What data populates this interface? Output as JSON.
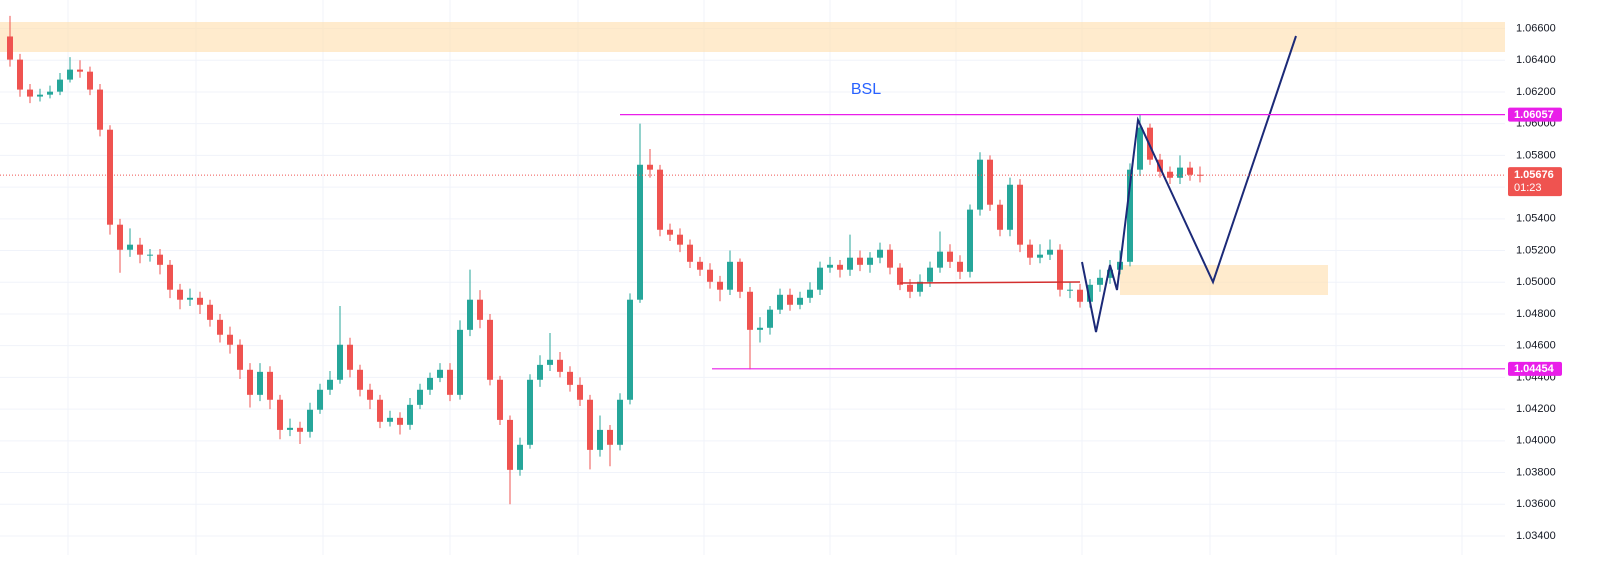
{
  "chart_data": {
    "type": "candlestick",
    "annotation": "BSL",
    "up_color": "#26a69a",
    "down_color": "#ef5350",
    "open": [
      1.0655,
      1.06404,
      1.06215,
      1.06171,
      1.06183,
      1.06202,
      1.06278,
      1.06341,
      1.06328,
      1.06215,
      1.05962,
      1.05363,
      1.05205,
      1.05237,
      1.05174,
      1.05174,
      1.0511,
      1.04953,
      1.0489,
      1.04902,
      1.04858,
      1.04763,
      1.04669,
      1.04606,
      1.04448,
      1.0429,
      1.04435,
      1.04259,
      1.04069,
      1.04082,
      1.04057,
      1.04196,
      1.04322,
      1.04385,
      1.04606,
      1.04448,
      1.04322,
      1.04259,
      1.0412,
      1.04145,
      1.04101,
      1.04227,
      1.04322,
      1.04397,
      1.04448,
      1.0429,
      1.047,
      1.0489,
      1.04763,
      1.04385,
      1.04132,
      1.03817,
      1.03975,
      1.04385,
      1.04479,
      1.04511,
      1.04435,
      1.04353,
      1.04259,
      1.03943,
      1.04069,
      1.03975,
      1.04259,
      1.0489,
      1.05741,
      1.0571,
      1.05331,
      1.053,
      1.05237,
      1.05129,
      1.05079,
      1.05003,
      1.04953,
      1.05129,
      1.0494,
      1.047,
      1.04713,
      1.04827,
      1.04921,
      1.04858,
      1.04902,
      1.04953,
      1.05092,
      1.0511,
      1.05079,
      1.05155,
      1.0511,
      1.05155,
      1.05205,
      1.05092,
      1.04984,
      1.0494,
      1.05003,
      1.05092,
      1.05193,
      1.05129,
      1.05066,
      1.05458,
      1.05773,
      1.05489,
      1.05331,
      1.05615,
      1.05237,
      1.05155,
      1.05174,
      1.05205,
      1.04953,
      1.04953,
      1.04877,
      1.04984,
      1.05028,
      1.05079,
      1.05129,
      1.0571,
      1.05975,
      1.05773,
      1.05697,
      1.05659,
      1.05723,
      1.05678
    ],
    "high": [
      1.0668,
      1.0644,
      1.0625,
      1.0622,
      1.0624,
      1.0632,
      1.0642,
      1.064,
      1.0636,
      1.0625,
      1.0599,
      1.054,
      1.0534,
      1.0528,
      1.0521,
      1.0521,
      1.0514,
      1.0499,
      1.0496,
      1.0494,
      1.0489,
      1.048,
      1.0472,
      1.0464,
      1.0449,
      1.0449,
      1.0447,
      1.0429,
      1.0414,
      1.0412,
      1.0424,
      1.0436,
      1.0444,
      1.0485,
      1.0465,
      1.0448,
      1.0436,
      1.0429,
      1.0419,
      1.0418,
      1.0427,
      1.0436,
      1.0443,
      1.0449,
      1.0449,
      1.0476,
      1.0508,
      1.0495,
      1.048,
      1.0441,
      1.0416,
      1.0402,
      1.0442,
      1.0454,
      1.0468,
      1.0456,
      1.0447,
      1.044,
      1.0429,
      1.0416,
      1.041,
      1.043,
      1.0493,
      1.06,
      1.0584,
      1.0574,
      1.0537,
      1.0534,
      1.0527,
      1.0516,
      1.0512,
      1.0504,
      1.052,
      1.0515,
      1.0497,
      1.0478,
      1.0485,
      1.0496,
      1.0496,
      1.0494,
      1.05,
      1.0513,
      1.0516,
      1.0514,
      1.053,
      1.052,
      1.0519,
      1.0525,
      1.0524,
      1.0512,
      1.0502,
      1.0505,
      1.0513,
      1.0532,
      1.0524,
      1.0517,
      1.0549,
      1.0582,
      1.058,
      1.0552,
      1.0566,
      1.0565,
      1.0527,
      1.0524,
      1.0527,
      1.0524,
      1.05,
      1.0499,
      1.0502,
      1.0508,
      1.0514,
      1.052,
      1.0575,
      1.0606,
      1.06,
      1.0581,
      1.0573,
      1.058,
      1.0576,
      1.0573
    ],
    "low": [
      1.0636,
      1.0617,
      1.0613,
      1.0614,
      1.0616,
      1.0618,
      1.0626,
      1.0629,
      1.0618,
      1.0592,
      1.053,
      1.0506,
      1.0516,
      1.0512,
      1.0513,
      1.0505,
      1.049,
      1.0483,
      1.0485,
      1.048,
      1.0472,
      1.0462,
      1.0455,
      1.0439,
      1.0421,
      1.0425,
      1.042,
      1.0401,
      1.0403,
      1.0398,
      1.0402,
      1.0417,
      1.0429,
      1.0436,
      1.044,
      1.0428,
      1.042,
      1.0408,
      1.0409,
      1.0404,
      1.0407,
      1.042,
      1.0429,
      1.0437,
      1.0425,
      1.0426,
      1.0466,
      1.0471,
      1.0435,
      1.041,
      1.036,
      1.0378,
      1.0395,
      1.0434,
      1.0444,
      1.044,
      1.0431,
      1.0422,
      1.0382,
      1.039,
      1.0384,
      1.0394,
      1.0423,
      1.0487,
      1.0566,
      1.0529,
      1.0526,
      1.0519,
      1.0509,
      1.0504,
      1.0496,
      1.0488,
      1.0492,
      1.049,
      1.0445,
      1.0462,
      1.0467,
      1.048,
      1.0482,
      1.0483,
      1.0487,
      1.0492,
      1.0506,
      1.0503,
      1.0504,
      1.0507,
      1.0506,
      1.0512,
      1.0505,
      1.0495,
      1.049,
      1.0491,
      1.0497,
      1.0506,
      1.0509,
      1.0502,
      1.0503,
      1.0542,
      1.0545,
      1.0529,
      1.0529,
      1.0519,
      1.0511,
      1.0512,
      1.0514,
      1.0491,
      1.049,
      1.0484,
      1.0484,
      1.0494,
      1.0499,
      1.0505,
      1.051,
      1.0567,
      1.0574,
      1.0566,
      1.0562,
      1.0562,
      1.0564,
      1.0563
    ],
    "close": [
      1.06404,
      1.06215,
      1.06171,
      1.06183,
      1.06202,
      1.06278,
      1.06341,
      1.06328,
      1.06215,
      1.05962,
      1.05363,
      1.05205,
      1.05237,
      1.05174,
      1.05174,
      1.0511,
      1.04953,
      1.0489,
      1.04902,
      1.04858,
      1.04763,
      1.04669,
      1.04606,
      1.04448,
      1.0429,
      1.04435,
      1.04259,
      1.04069,
      1.04082,
      1.04057,
      1.04196,
      1.04322,
      1.04385,
      1.04606,
      1.04448,
      1.04322,
      1.04259,
      1.0412,
      1.04145,
      1.04101,
      1.04227,
      1.04322,
      1.04397,
      1.04448,
      1.0429,
      1.047,
      1.0489,
      1.04763,
      1.04385,
      1.04132,
      1.03817,
      1.03975,
      1.04385,
      1.04479,
      1.04511,
      1.04435,
      1.04353,
      1.04259,
      1.03943,
      1.04069,
      1.03975,
      1.04259,
      1.0489,
      1.05741,
      1.0571,
      1.05331,
      1.053,
      1.05237,
      1.05129,
      1.05079,
      1.05003,
      1.04953,
      1.05129,
      1.0494,
      1.047,
      1.04713,
      1.04827,
      1.04921,
      1.04858,
      1.04902,
      1.04953,
      1.05092,
      1.0511,
      1.05079,
      1.05155,
      1.0511,
      1.05155,
      1.05205,
      1.05092,
      1.04984,
      1.0494,
      1.05003,
      1.05092,
      1.05193,
      1.05129,
      1.05066,
      1.05458,
      1.05773,
      1.05489,
      1.05331,
      1.05615,
      1.05237,
      1.05155,
      1.05174,
      1.05205,
      1.04953,
      1.04953,
      1.04877,
      1.04984,
      1.05028,
      1.05079,
      1.05129,
      1.0571,
      1.05975,
      1.05773,
      1.05697,
      1.05659,
      1.05723,
      1.05678,
      1.05676
    ],
    "ylim": [
      1.0328,
      1.0678
    ],
    "yticks": [
      {
        "value": 1.034,
        "label": "1.03400"
      },
      {
        "value": 1.036,
        "label": "1.03600"
      },
      {
        "value": 1.038,
        "label": "1.03800"
      },
      {
        "value": 1.04,
        "label": "1.04000"
      },
      {
        "value": 1.042,
        "label": "1.04200"
      },
      {
        "value": 1.044,
        "label": "1.04400"
      },
      {
        "value": 1.046,
        "label": "1.04600"
      },
      {
        "value": 1.048,
        "label": "1.04800"
      },
      {
        "value": 1.05,
        "label": "1.05000"
      },
      {
        "value": 1.052,
        "label": "1.05200"
      },
      {
        "value": 1.054,
        "label": "1.05400"
      },
      {
        "value": 1.056,
        "label": "1.05600"
      },
      {
        "value": 1.058,
        "label": "1.05800"
      },
      {
        "value": 1.06,
        "label": "1.06000"
      },
      {
        "value": 1.062,
        "label": "1.06200"
      },
      {
        "value": 1.064,
        "label": "1.06400"
      },
      {
        "value": 1.066,
        "label": "1.06600"
      }
    ],
    "grid": true,
    "levels": [
      {
        "value": 1.06057,
        "color": "#e91ee9"
      },
      {
        "value": 1.04454,
        "color": "#e91ee9"
      }
    ],
    "last_price": 1.05676,
    "last_price_color": "#ef5350",
    "countdown": "01:23"
  }
}
